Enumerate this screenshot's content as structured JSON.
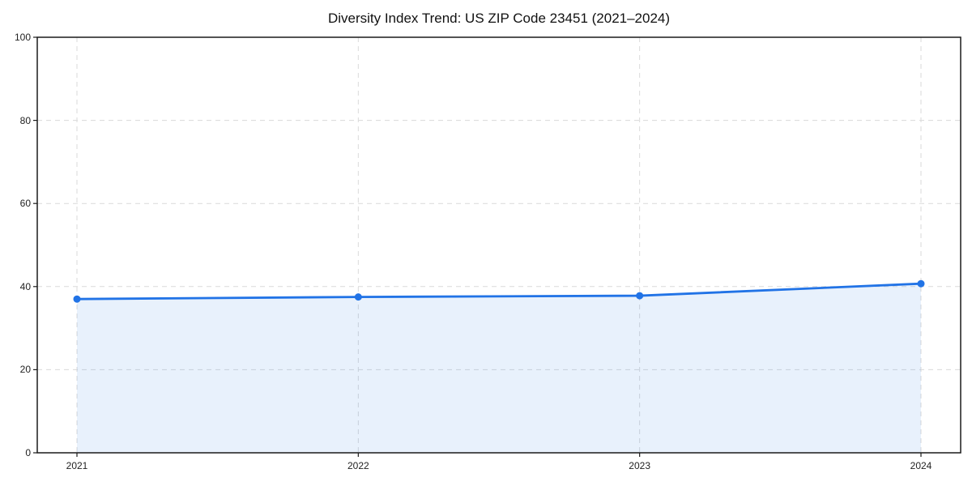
{
  "chart_data": {
    "type": "line",
    "title": "Diversity Index Trend: US ZIP Code 23451 (2021–2024)",
    "categories": [
      "2021",
      "2022",
      "2023",
      "2024"
    ],
    "series": [
      {
        "name": "Diversity Index",
        "values": [
          37.0,
          37.5,
          37.8,
          40.7
        ]
      }
    ],
    "xlabel": "",
    "ylabel": "",
    "ylim": [
      0,
      100
    ],
    "yticks": [
      0,
      20,
      40,
      60,
      80,
      100
    ],
    "grid": "dashed, both axes",
    "legend_position": "none",
    "area_fill": true,
    "markers": "circle",
    "colors": {
      "line": "#2173e6",
      "marker": "#2173e6",
      "fill": "#e9f0fb",
      "grid": "#dadada",
      "axis": "#1a1a1a",
      "background": "#ffffff",
      "text": "#222222"
    }
  }
}
